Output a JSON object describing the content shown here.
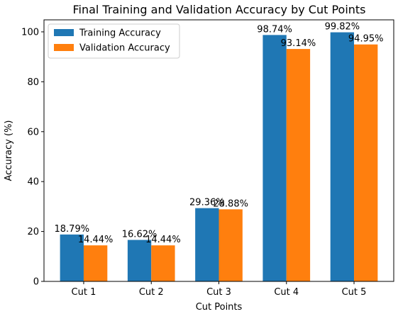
{
  "chart_data": {
    "type": "bar",
    "title": "Final Training and Validation Accuracy by Cut Points",
    "xlabel": "Cut Points",
    "ylabel": "Accuracy (%)",
    "categories": [
      "Cut 1",
      "Cut 2",
      "Cut 3",
      "Cut 4",
      "Cut 5"
    ],
    "series": [
      {
        "name": "Training Accuracy",
        "color": "#1f77b4",
        "values": [
          18.79,
          16.62,
          29.36,
          98.74,
          99.82
        ],
        "labels": [
          "18.79%",
          "16.62%",
          "29.36%",
          "98.74%",
          "99.82%"
        ]
      },
      {
        "name": "Validation Accuracy",
        "color": "#ff7f0e",
        "values": [
          14.44,
          14.44,
          28.88,
          93.14,
          94.95
        ],
        "labels": [
          "14.44%",
          "14.44%",
          "28.88%",
          "93.14%",
          "94.95%"
        ]
      }
    ],
    "ylim": [
      0,
      104.811
    ],
    "yticks": [
      0,
      20,
      40,
      60,
      80,
      100
    ],
    "ytick_labels": [
      "0",
      "20",
      "40",
      "60",
      "80",
      "100"
    ],
    "legend_position": "top-left",
    "grid": false
  }
}
